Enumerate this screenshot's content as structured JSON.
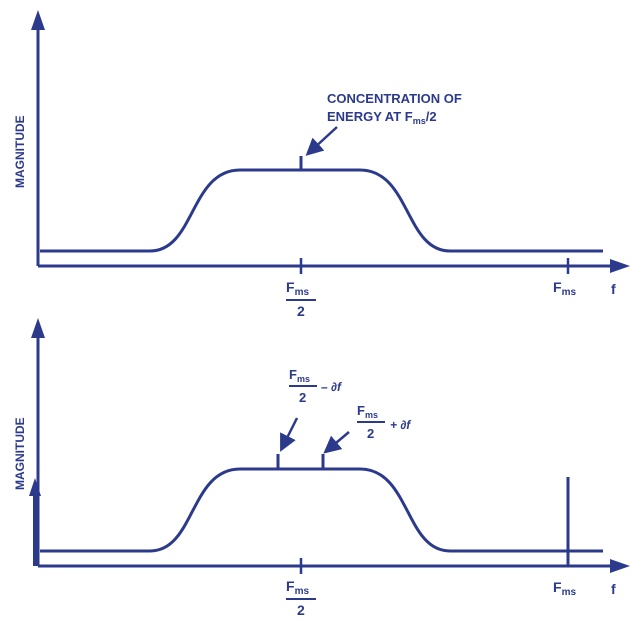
{
  "colors": {
    "ink": "#2c3a8c",
    "background": "#ffffff"
  },
  "top_panel": {
    "ylabel": "MAGNITUDE",
    "annotation_line1": "CONCENTRATION OF",
    "annotation_line2_prefix": "ENERGY AT F",
    "annotation_line2_sub": "ms",
    "annotation_line2_suffix": "/2",
    "tick_half_num": "F",
    "tick_half_num_sub": "ms",
    "tick_half_den": "2",
    "tick_full": "F",
    "tick_full_sub": "ms",
    "xlabel": "f"
  },
  "bottom_panel": {
    "ylabel": "MAGNITUDE",
    "minus_num": "F",
    "minus_num_sub": "ms",
    "minus_den": "2",
    "minus_suffix": "– ∂f",
    "plus_num": "F",
    "plus_num_sub": "ms",
    "plus_den": "2",
    "plus_suffix": "+ ∂f",
    "tick_half_num": "F",
    "tick_half_num_sub": "ms",
    "tick_half_den": "2",
    "tick_full": "F",
    "tick_full_sub": "ms",
    "xlabel": "f"
  }
}
